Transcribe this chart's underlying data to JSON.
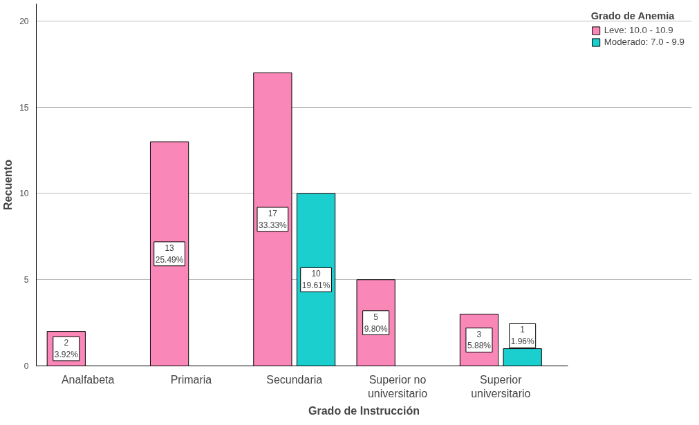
{
  "chart_data": {
    "type": "bar",
    "xlabel": "Grado de Instrucción",
    "ylabel": "Recuento",
    "legend_title": "Grado de Anemia",
    "categories": [
      "Analfabeta",
      "Primaria",
      "Secundaria",
      "Superior no universitario",
      "Superior universitario"
    ],
    "series": [
      {
        "name": "Leve: 10.0 - 10.9",
        "color": "#f987b8",
        "values": [
          2,
          13,
          17,
          5,
          3
        ],
        "value_labels": [
          "2\n3.92%",
          "13\n25.49%",
          "17\n33.33%",
          "5\n9.80%",
          "3\n5.88%"
        ]
      },
      {
        "name": "Moderado: 7.0 - 9.9",
        "color": "#1ccfcf",
        "values": [
          null,
          null,
          10,
          null,
          1
        ],
        "value_labels": [
          null,
          null,
          "10\n19.61%",
          null,
          "1\n1.96%"
        ]
      }
    ],
    "ylim": [
      0,
      21
    ],
    "yticks": [
      0,
      5,
      10,
      15,
      20
    ],
    "grid": "y",
    "legend": "top right"
  }
}
